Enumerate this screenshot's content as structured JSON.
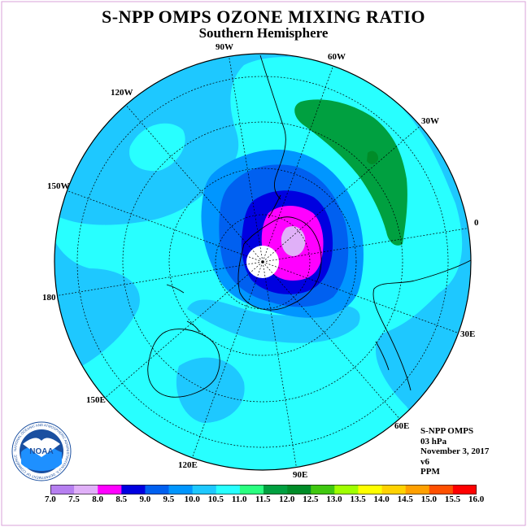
{
  "title": "S-NPP OMPS OZONE MIXING RATIO",
  "subtitle": "Southern Hemisphere",
  "longitude_labels": [
    "90W",
    "60W",
    "30W",
    "0",
    "30E",
    "60E",
    "90E",
    "120E",
    "150E",
    "180",
    "150W",
    "120W"
  ],
  "info": {
    "line1": "S-NPP OMPS",
    "line2": "03 hPa",
    "line3": "November 3, 2017",
    "line4": "v6",
    "line5": "PPM"
  },
  "colorbar": {
    "labels": [
      "7.0",
      "7.5",
      "8.0",
      "8.5",
      "9.0",
      "9.5",
      "10.0",
      "10.5",
      "11.0",
      "11.5",
      "12.0",
      "12.5",
      "13.0",
      "13.5",
      "14.0",
      "14.5",
      "15.0",
      "15.5",
      "16.0"
    ],
    "colors": [
      "#b67ff0",
      "#e0b0f8",
      "#ff00ff",
      "#0000e0",
      "#0060f0",
      "#0096ff",
      "#1ec8ff",
      "#28ffff",
      "#2aff80",
      "#00a040",
      "#008c28",
      "#40c810",
      "#a0ff00",
      "#ffff00",
      "#ffd200",
      "#ffa000",
      "#ff5000",
      "#ff0000",
      "#8b4513"
    ]
  },
  "logo": {
    "text": "NOAA",
    "ring_text": "NATIONAL OCEANIC AND ATMOSPHERIC ADMINISTRATION U.S. DEPARTMENT OF COMMERCE"
  }
}
